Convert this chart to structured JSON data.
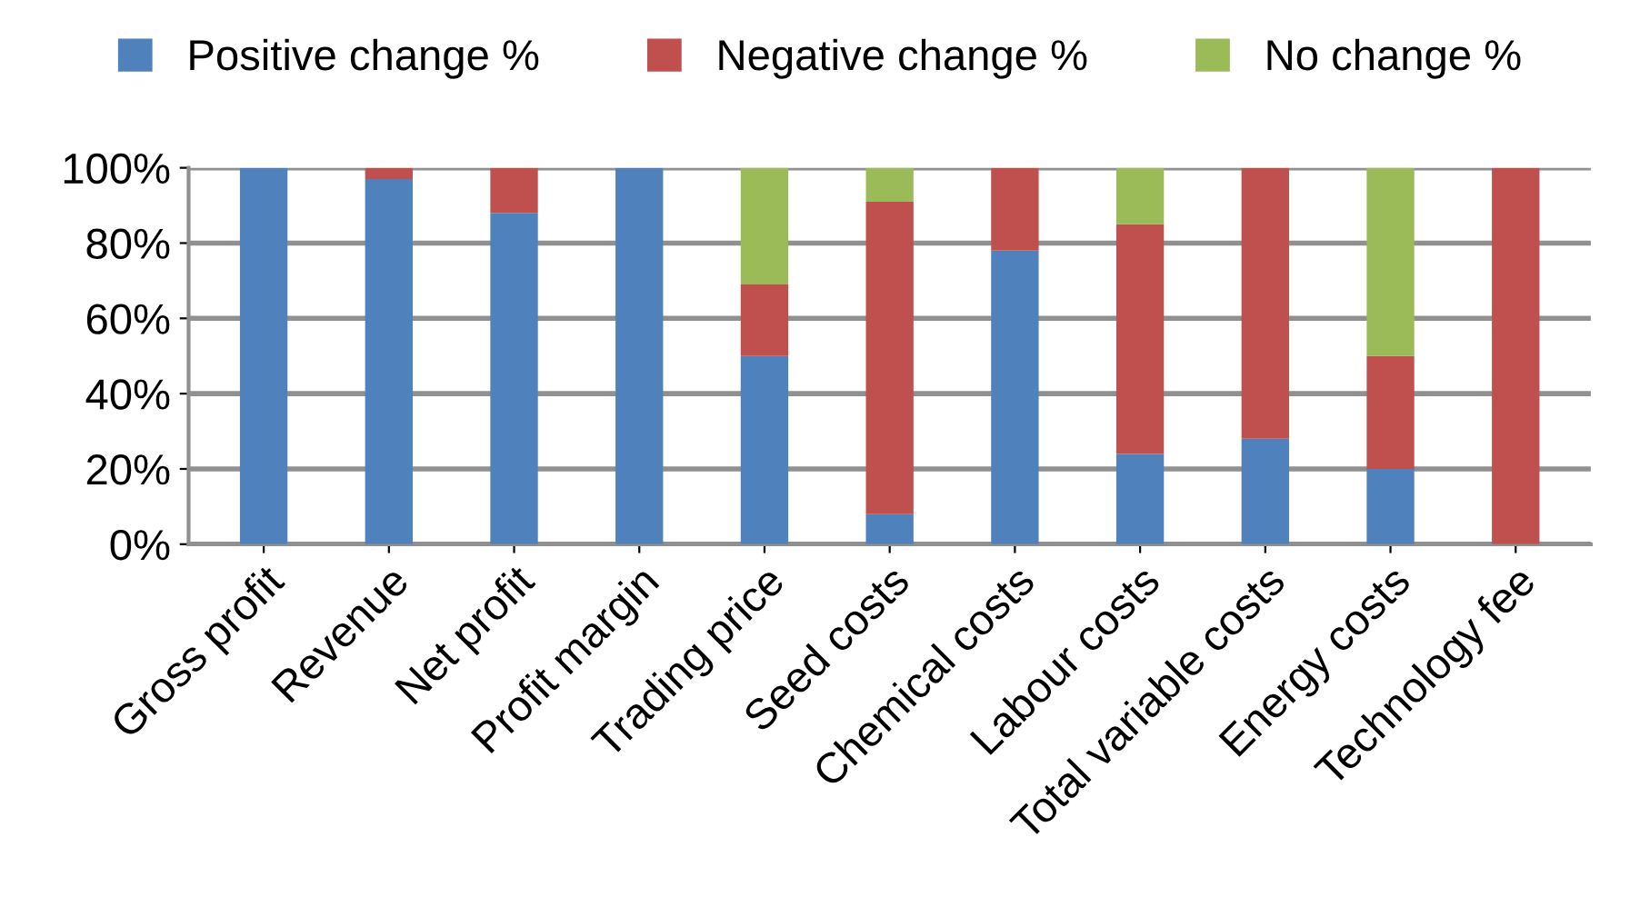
{
  "chart_data": {
    "type": "bar",
    "stacked": true,
    "categories": [
      "Gross profit",
      "Revenue",
      "Net profit",
      "Profit margin",
      "Trading price",
      "Seed costs",
      "Chemical costs",
      "Labour costs",
      "Total variable costs",
      "Energy costs",
      "Technology fee"
    ],
    "series": [
      {
        "name": "Positive change %",
        "color": "#4f81bd",
        "values": [
          100,
          97,
          88,
          100,
          50,
          8,
          78,
          24,
          28,
          20,
          0
        ]
      },
      {
        "name": "Negative change %",
        "color": "#c0504d",
        "values": [
          0,
          3,
          12,
          0,
          19,
          83,
          22,
          61,
          72,
          30,
          100
        ]
      },
      {
        "name": "No change %",
        "color": "#9bbb59",
        "values": [
          0,
          0,
          0,
          0,
          31,
          9,
          0,
          15,
          0,
          50,
          0
        ]
      }
    ],
    "ylim": [
      0,
      100
    ],
    "yticks": [
      {
        "value": 0,
        "label": "0%"
      },
      {
        "value": 20,
        "label": "20%"
      },
      {
        "value": 40,
        "label": "40%"
      },
      {
        "value": 60,
        "label": "60%"
      },
      {
        "value": 80,
        "label": "80%"
      },
      {
        "value": 100,
        "label": "100%"
      }
    ],
    "grid": "y",
    "legend": "top"
  }
}
